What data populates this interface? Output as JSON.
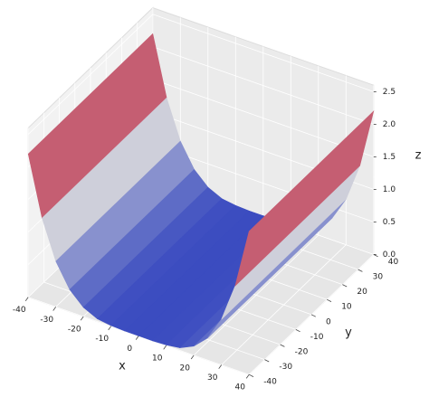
{
  "chart_data": {
    "type": "surface",
    "xlabel": "x",
    "ylabel": "y",
    "zlabel": "z",
    "x": [
      -40,
      -35,
      -30,
      -25,
      -20,
      -15,
      -10,
      -5,
      0,
      5,
      10,
      15,
      20,
      25,
      30,
      35,
      40
    ],
    "values": [
      2.2,
      1.29,
      0.7,
      0.34,
      0.14,
      0.04,
      0.01,
      0.0,
      0.0,
      0.0,
      0.01,
      0.04,
      0.14,
      0.34,
      0.7,
      1.29,
      2.2
    ],
    "colormap": [
      "#3b4cc0",
      "#dddddd",
      "#b40426"
    ],
    "xlim": [
      -40,
      40
    ],
    "ylim": [
      -40,
      40
    ],
    "zlim": [
      0,
      2.6
    ],
    "xticks": [
      -40,
      -30,
      -20,
      -10,
      0,
      10,
      20,
      30,
      40
    ],
    "yticks": [
      -40,
      -30,
      -20,
      -10,
      0,
      10,
      20,
      30,
      40
    ],
    "zticks": [
      {
        "value": 0,
        "label": "0.0"
      },
      0.5,
      {
        "value": 1,
        "label": "1.0"
      },
      1.5,
      {
        "value": 2,
        "label": "2.0"
      },
      2.5
    ],
    "grid": true
  }
}
